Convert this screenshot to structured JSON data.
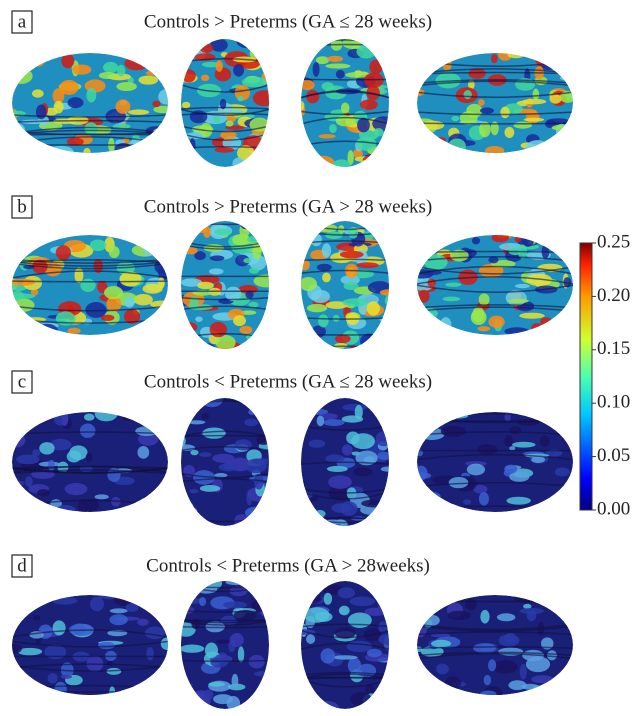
{
  "panels": [
    {
      "label": "a",
      "title": "Controls > Preterms (GA ≤ 28 weeks)"
    },
    {
      "label": "b",
      "title": "Controls > Preterms (GA > 28 weeks)"
    },
    {
      "label": "c",
      "title": "Controls < Preterms (GA ≤ 28 weeks)"
    },
    {
      "label": "d",
      "title": "Controls < Preterms (GA > 28weeks)"
    }
  ],
  "colorbar": {
    "lim": [
      0,
      0.25
    ],
    "ticks": [
      {
        "value": 0.25,
        "label": "0.25"
      },
      {
        "value": 0.2,
        "label": "0.20"
      },
      {
        "value": 0.15,
        "label": "0.15"
      },
      {
        "value": 0.1,
        "label": "0.10"
      },
      {
        "value": 0.05,
        "label": "0.05"
      },
      {
        "value": 0,
        "label": "0.00"
      }
    ]
  }
}
